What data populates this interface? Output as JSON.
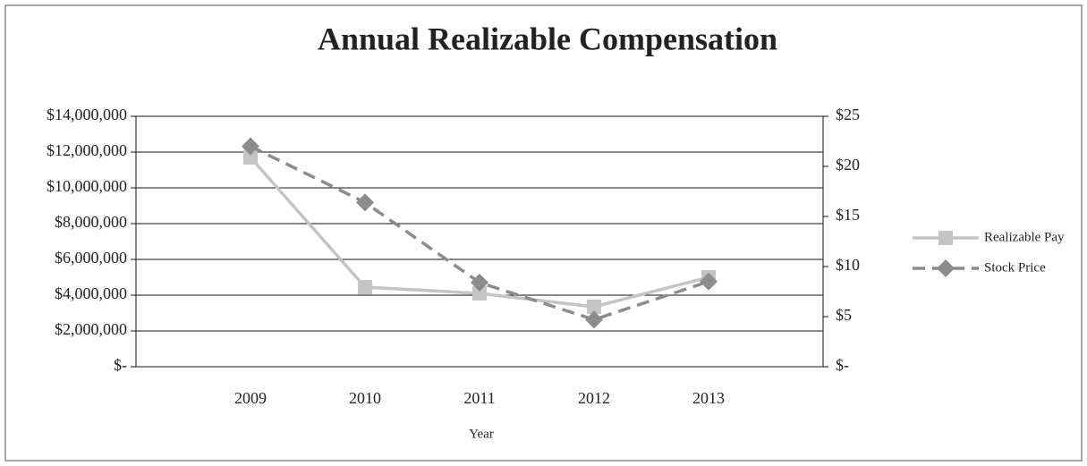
{
  "chart_data": {
    "type": "line",
    "title": "Annual Realizable Compensation",
    "xlabel": "Year",
    "categories": [
      "2009",
      "2010",
      "2011",
      "2012",
      "2013"
    ],
    "series": [
      {
        "name": "Realizable Pay",
        "color": "#c4c4c4",
        "style": "solid",
        "marker": "square",
        "values": [
          11700000,
          4450000,
          4100000,
          3350000,
          5000000
        ]
      },
      {
        "name": "Stock Price",
        "color": "#8c8c8c",
        "style": "dashed",
        "marker": "diamond",
        "axis": "y2",
        "values": [
          22,
          16.4,
          8.4,
          4.7,
          8.5
        ]
      }
    ],
    "ylim": [
      0,
      14000000
    ],
    "yticks": [
      {
        "value": 0,
        "label": "$-"
      },
      {
        "value": 2000000,
        "label": "$2,000,000"
      },
      {
        "value": 4000000,
        "label": "$4,000,000"
      },
      {
        "value": 6000000,
        "label": "$6,000,000"
      },
      {
        "value": 8000000,
        "label": "$8,000,000"
      },
      {
        "value": 10000000,
        "label": "$10,000,000"
      },
      {
        "value": 12000000,
        "label": "$12,000,000"
      },
      {
        "value": 14000000,
        "label": "$14,000,000"
      }
    ],
    "y2lim": [
      0,
      25
    ],
    "y2ticks": [
      {
        "value": 0,
        "label": "$-"
      },
      {
        "value": 5,
        "label": "$5"
      },
      {
        "value": 10,
        "label": "$10"
      },
      {
        "value": 15,
        "label": "$15"
      },
      {
        "value": 20,
        "label": "$20"
      },
      {
        "value": 25,
        "label": "$25"
      }
    ],
    "grid": true,
    "legend": "right"
  }
}
